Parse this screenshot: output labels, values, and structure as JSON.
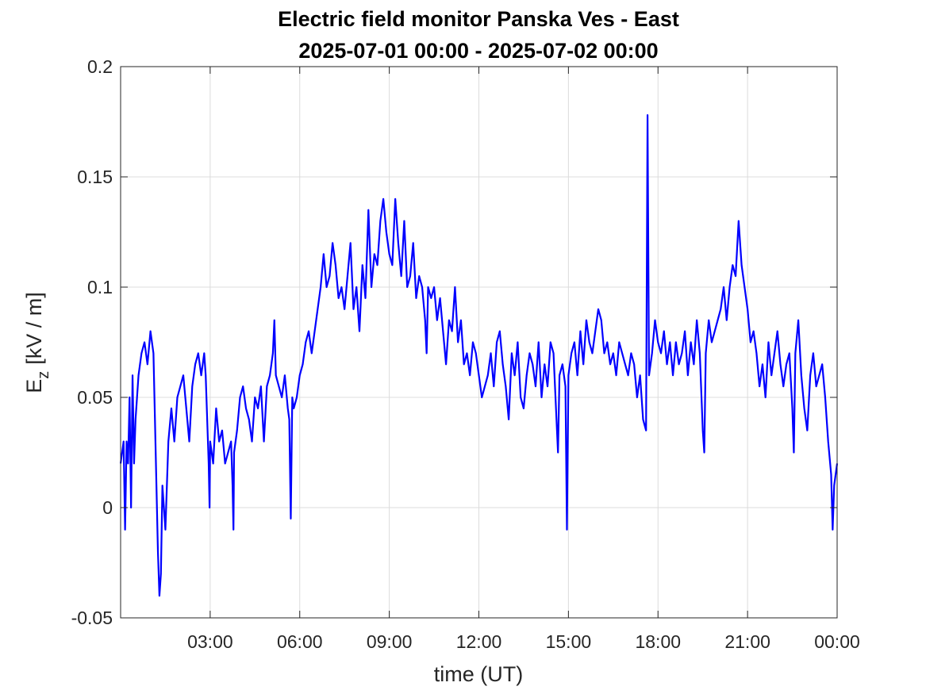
{
  "chart_data": {
    "type": "line",
    "title": "Electric field monitor Panska Ves - East",
    "subtitle": "2025-07-01 00:00 - 2025-07-02 00:00",
    "xlabel": "time (UT)",
    "ylabel": {
      "base": "E",
      "sub": "z",
      "rest": "[kV / m]"
    },
    "color": "#0000ff",
    "grid": true,
    "xlim": [
      0,
      24
    ],
    "ylim": [
      -0.05,
      0.2
    ],
    "yticks": [
      -0.05,
      0,
      0.05,
      0.1,
      0.15,
      0.2
    ],
    "xticks": [
      {
        "value": 3,
        "label": "03:00"
      },
      {
        "value": 6,
        "label": "06:00"
      },
      {
        "value": 9,
        "label": "09:00"
      },
      {
        "value": 12,
        "label": "12:00"
      },
      {
        "value": 15,
        "label": "15:00"
      },
      {
        "value": 18,
        "label": "18:00"
      },
      {
        "value": 21,
        "label": "21:00"
      },
      {
        "value": 24,
        "label": "00:00"
      }
    ],
    "x": [
      0,
      0.1,
      0.15,
      0.2,
      0.25,
      0.3,
      0.35,
      0.4,
      0.45,
      0.5,
      0.6,
      0.7,
      0.8,
      0.9,
      1,
      1.1,
      1.15,
      1.2,
      1.25,
      1.3,
      1.35,
      1.4,
      1.5,
      1.6,
      1.7,
      1.8,
      1.9,
      2,
      2.1,
      2.2,
      2.3,
      2.4,
      2.5,
      2.6,
      2.7,
      2.8,
      2.85,
      2.95,
      2.98,
      3,
      3.1,
      3.2,
      3.3,
      3.4,
      3.5,
      3.6,
      3.7,
      3.75,
      3.78,
      3.8,
      3.9,
      4,
      4.1,
      4.2,
      4.3,
      4.4,
      4.5,
      4.6,
      4.7,
      4.8,
      4.9,
      5,
      5.1,
      5.15,
      5.2,
      5.3,
      5.4,
      5.5,
      5.6,
      5.65,
      5.7,
      5.75,
      5.8,
      5.9,
      6,
      6.1,
      6.2,
      6.3,
      6.4,
      6.5,
      6.6,
      6.7,
      6.8,
      6.9,
      7,
      7.1,
      7.2,
      7.3,
      7.4,
      7.5,
      7.6,
      7.7,
      7.8,
      7.9,
      8,
      8.1,
      8.2,
      8.3,
      8.4,
      8.5,
      8.6,
      8.7,
      8.8,
      8.9,
      9,
      9.1,
      9.2,
      9.3,
      9.4,
      9.5,
      9.6,
      9.7,
      9.8,
      9.9,
      10,
      10.1,
      10.2,
      10.25,
      10.3,
      10.4,
      10.5,
      10.6,
      10.7,
      10.8,
      10.9,
      11,
      11.1,
      11.2,
      11.3,
      11.4,
      11.5,
      11.6,
      11.7,
      11.8,
      11.9,
      12,
      12.1,
      12.2,
      12.3,
      12.4,
      12.5,
      12.6,
      12.7,
      12.8,
      12.9,
      13,
      13.1,
      13.2,
      13.3,
      13.4,
      13.5,
      13.6,
      13.7,
      13.8,
      13.9,
      14,
      14.1,
      14.2,
      14.3,
      14.4,
      14.5,
      14.6,
      14.65,
      14.7,
      14.8,
      14.9,
      14.95,
      15,
      15.1,
      15.2,
      15.3,
      15.4,
      15.5,
      15.6,
      15.7,
      15.8,
      15.9,
      16,
      16.1,
      16.2,
      16.3,
      16.4,
      16.5,
      16.6,
      16.7,
      16.8,
      16.9,
      17,
      17.1,
      17.2,
      17.3,
      17.4,
      17.5,
      17.6,
      17.65,
      17.7,
      17.8,
      17.9,
      18,
      18.1,
      18.2,
      18.3,
      18.4,
      18.5,
      18.6,
      18.7,
      18.8,
      18.9,
      19,
      19.1,
      19.2,
      19.3,
      19.4,
      19.5,
      19.55,
      19.6,
      19.7,
      19.8,
      19.9,
      20,
      20.1,
      20.2,
      20.3,
      20.4,
      20.5,
      20.6,
      20.7,
      20.8,
      20.9,
      21,
      21.1,
      21.2,
      21.3,
      21.4,
      21.5,
      21.6,
      21.7,
      21.8,
      21.9,
      22,
      22.1,
      22.2,
      22.3,
      22.4,
      22.5,
      22.55,
      22.6,
      22.7,
      22.8,
      22.9,
      23,
      23.1,
      23.2,
      23.3,
      23.4,
      23.5,
      23.6,
      23.7,
      23.8,
      23.85,
      23.9,
      24
    ],
    "values": [
      0.02,
      0.03,
      -0.01,
      0.03,
      0.02,
      0.05,
      0,
      0.06,
      0.02,
      0.04,
      0.06,
      0.07,
      0.075,
      0.065,
      0.08,
      0.07,
      0.04,
      0.01,
      -0.02,
      -0.04,
      -0.03,
      0.01,
      -0.01,
      0.03,
      0.045,
      0.03,
      0.05,
      0.055,
      0.06,
      0.045,
      0.03,
      0.055,
      0.065,
      0.07,
      0.06,
      0.07,
      0.06,
      0.02,
      0,
      0.03,
      0.02,
      0.045,
      0.03,
      0.035,
      0.02,
      0.025,
      0.03,
      0.01,
      -0.01,
      0.025,
      0.035,
      0.05,
      0.055,
      0.045,
      0.04,
      0.03,
      0.05,
      0.045,
      0.055,
      0.03,
      0.055,
      0.06,
      0.07,
      0.085,
      0.06,
      0.055,
      0.05,
      0.06,
      0.045,
      0.04,
      -0.005,
      0.05,
      0.045,
      0.05,
      0.06,
      0.065,
      0.075,
      0.08,
      0.07,
      0.08,
      0.09,
      0.1,
      0.115,
      0.1,
      0.105,
      0.12,
      0.11,
      0.095,
      0.1,
      0.09,
      0.105,
      0.12,
      0.09,
      0.1,
      0.08,
      0.11,
      0.095,
      0.135,
      0.1,
      0.115,
      0.11,
      0.13,
      0.14,
      0.125,
      0.115,
      0.11,
      0.14,
      0.12,
      0.105,
      0.13,
      0.1,
      0.105,
      0.12,
      0.095,
      0.105,
      0.1,
      0.085,
      0.07,
      0.1,
      0.095,
      0.1,
      0.085,
      0.095,
      0.08,
      0.065,
      0.085,
      0.08,
      0.1,
      0.075,
      0.085,
      0.065,
      0.07,
      0.06,
      0.075,
      0.07,
      0.06,
      0.05,
      0.055,
      0.06,
      0.07,
      0.055,
      0.075,
      0.08,
      0.065,
      0.055,
      0.04,
      0.07,
      0.06,
      0.075,
      0.05,
      0.045,
      0.06,
      0.07,
      0.065,
      0.055,
      0.075,
      0.05,
      0.065,
      0.055,
      0.075,
      0.07,
      0.04,
      0.025,
      0.06,
      0.065,
      0.055,
      -0.01,
      0.06,
      0.07,
      0.075,
      0.06,
      0.08,
      0.065,
      0.085,
      0.075,
      0.07,
      0.08,
      0.09,
      0.085,
      0.07,
      0.075,
      0.065,
      0.07,
      0.06,
      0.075,
      0.07,
      0.065,
      0.06,
      0.07,
      0.065,
      0.05,
      0.06,
      0.04,
      0.035,
      0.178,
      0.06,
      0.07,
      0.085,
      0.075,
      0.07,
      0.08,
      0.065,
      0.075,
      0.06,
      0.075,
      0.065,
      0.07,
      0.08,
      0.06,
      0.075,
      0.065,
      0.085,
      0.07,
      0.035,
      0.025,
      0.07,
      0.085,
      0.075,
      0.08,
      0.085,
      0.09,
      0.1,
      0.085,
      0.1,
      0.11,
      0.105,
      0.13,
      0.11,
      0.1,
      0.09,
      0.075,
      0.08,
      0.07,
      0.055,
      0.065,
      0.05,
      0.075,
      0.06,
      0.07,
      0.08,
      0.065,
      0.055,
      0.065,
      0.07,
      0.045,
      0.025,
      0.07,
      0.085,
      0.06,
      0.045,
      0.035,
      0.06,
      0.07,
      0.055,
      0.06,
      0.065,
      0.05,
      0.03,
      0.015,
      -0.01,
      0.01,
      0.02
    ]
  }
}
